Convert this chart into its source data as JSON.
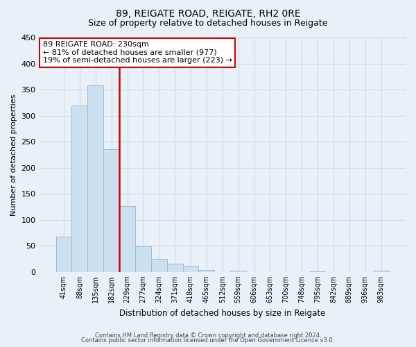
{
  "title": "89, REIGATE ROAD, REIGATE, RH2 0RE",
  "subtitle": "Size of property relative to detached houses in Reigate",
  "xlabel": "Distribution of detached houses by size in Reigate",
  "ylabel": "Number of detached properties",
  "bin_labels": [
    "41sqm",
    "88sqm",
    "135sqm",
    "182sqm",
    "229sqm",
    "277sqm",
    "324sqm",
    "371sqm",
    "418sqm",
    "465sqm",
    "512sqm",
    "559sqm",
    "606sqm",
    "653sqm",
    "700sqm",
    "748sqm",
    "795sqm",
    "842sqm",
    "889sqm",
    "936sqm",
    "983sqm"
  ],
  "bar_heights": [
    68,
    320,
    358,
    235,
    126,
    49,
    25,
    16,
    12,
    4,
    0,
    2,
    0,
    0,
    0,
    0,
    1,
    0,
    0,
    0,
    2
  ],
  "bar_color": "#cde0f0",
  "bar_edge_color": "#9bbcd8",
  "vline_color": "#cc0000",
  "vline_x_index": 4,
  "ylim": [
    0,
    450
  ],
  "yticks": [
    0,
    50,
    100,
    150,
    200,
    250,
    300,
    350,
    400,
    450
  ],
  "annotation_line1": "89 REIGATE ROAD: 230sqm",
  "annotation_line2": "← 81% of detached houses are smaller (977)",
  "annotation_line3": "19% of semi-detached houses are larger (223) →",
  "annotation_box_color": "#ffffff",
  "annotation_box_edge": "#cc0000",
  "footer1": "Contains HM Land Registry data © Crown copyright and database right 2024.",
  "footer2": "Contains public sector information licensed under the Open Government Licence v3.0.",
  "background_color": "#e8f0f8",
  "grid_color": "#d0dce8",
  "title_fontsize": 10,
  "subtitle_fontsize": 9,
  "ylabel_fontsize": 8,
  "xlabel_fontsize": 8.5
}
